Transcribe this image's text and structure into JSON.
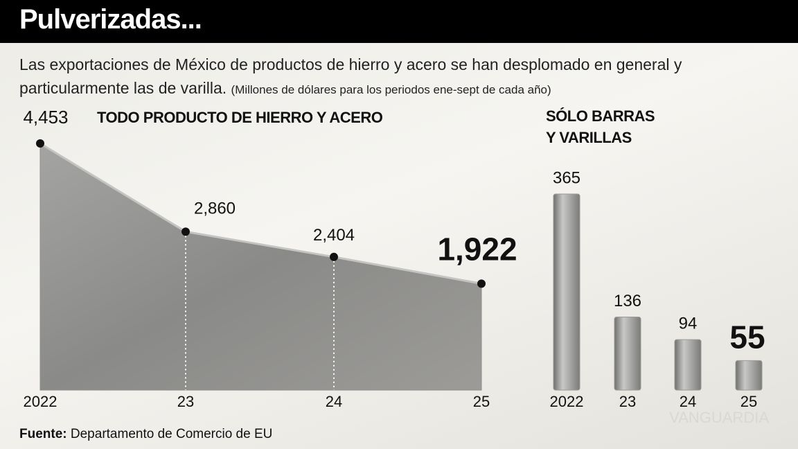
{
  "header": {
    "title": "Pulverizadas..."
  },
  "subtitle": "Las exportaciones de México de productos de hierro y acero se han desplomado en general y particularmente las de varilla.",
  "note": "(Millones de dólares para los periodos ene-sept de cada año)",
  "chart_data": [
    {
      "type": "area",
      "title": "TODO PRODUCTO DE HIERRO Y ACERO",
      "categories": [
        "2022",
        "23",
        "24",
        "25"
      ],
      "values": [
        4453,
        2860,
        2404,
        1922
      ],
      "value_labels": [
        "4,453",
        "2,860",
        "2,404",
        "1,922"
      ],
      "color": "#8e8e8c"
    },
    {
      "type": "bar",
      "title": "SÓLO BARRAS Y VARILLAS",
      "categories": [
        "2022",
        "23",
        "24",
        "25"
      ],
      "values": [
        365,
        136,
        94,
        55
      ],
      "color": "#9a9a98"
    }
  ],
  "source": {
    "label": "Fuente:",
    "text": "Departamento de Comercio de EU"
  },
  "watermark": "VANGUARDIA"
}
